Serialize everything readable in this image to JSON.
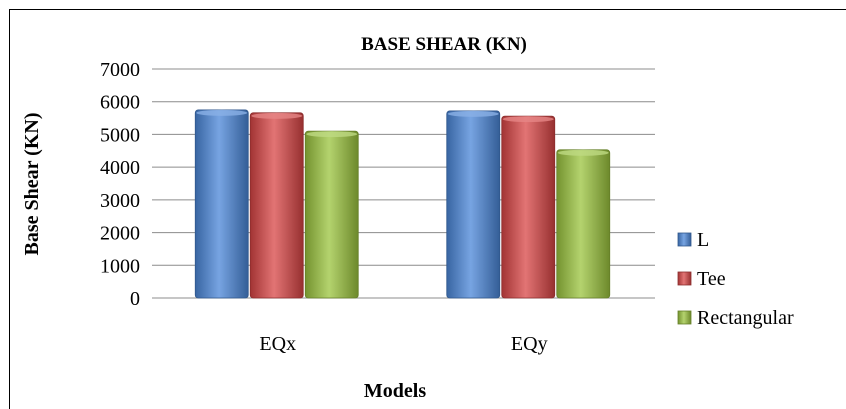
{
  "chart_data": {
    "type": "bar",
    "title": "BASE SHEAR (KN)",
    "xlabel": "Models",
    "ylabel": "Base Shear (KN)",
    "categories": [
      "EQx",
      "EQy"
    ],
    "ylim": [
      0,
      7000
    ],
    "yticks": [
      0,
      1000,
      2000,
      3000,
      4000,
      5000,
      6000,
      7000
    ],
    "grid": true,
    "legend_position": "right",
    "series": [
      {
        "name": "L",
        "color": "#4a86d8",
        "values": [
          5750,
          5720
        ]
      },
      {
        "name": "Tee",
        "color": "#d84545",
        "values": [
          5660,
          5560
        ]
      },
      {
        "name": "Rectangular",
        "color": "#9bc43e",
        "values": [
          5100,
          4530
        ]
      }
    ]
  }
}
